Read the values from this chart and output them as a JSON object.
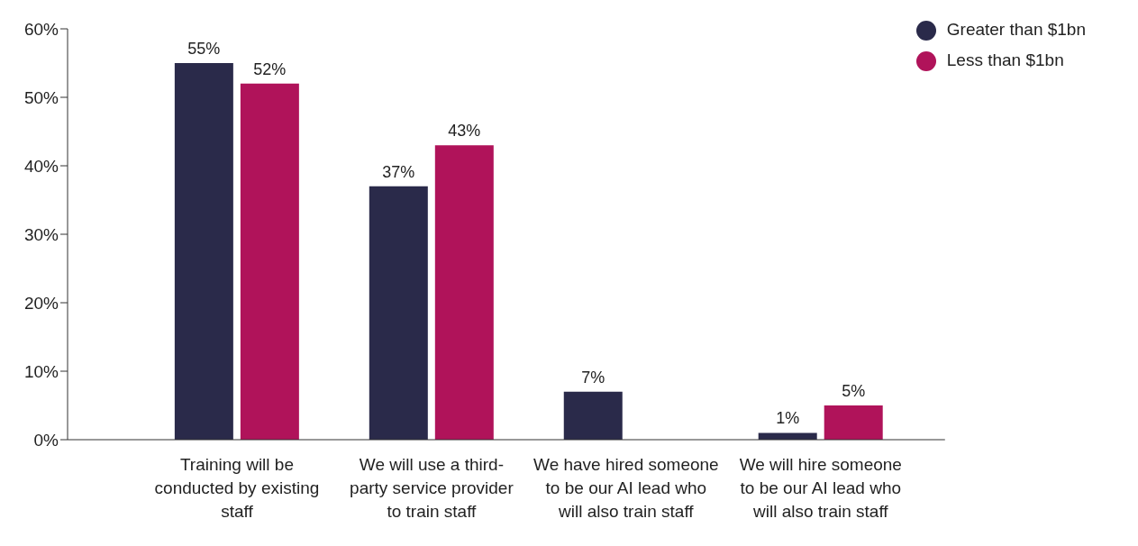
{
  "chart_data": {
    "type": "bar",
    "categories": [
      "Training will be conducted by existing staff",
      "We will use a third-party service provider to train staff",
      "We have hired someone to be our AI lead who will also train staff",
      "We will hire someone to be our AI lead who will also train staff"
    ],
    "series": [
      {
        "name": "Greater than $1bn",
        "color": "#2a2a4a",
        "values": [
          55,
          37,
          7,
          1
        ],
        "value_labels": [
          "55%",
          "37%",
          "7%",
          "1%"
        ]
      },
      {
        "name": "Less than $1bn",
        "color": "#b0135a",
        "values": [
          52,
          43,
          null,
          5
        ],
        "value_labels": [
          "52%",
          "43%",
          null,
          "5%"
        ]
      }
    ],
    "ylim": [
      0,
      60
    ],
    "yticks": [
      {
        "value": 0,
        "label": "0%"
      },
      {
        "value": 10,
        "label": "10%"
      },
      {
        "value": 20,
        "label": "20%"
      },
      {
        "value": 30,
        "label": "30%"
      },
      {
        "value": 40,
        "label": "40%"
      },
      {
        "value": 50,
        "label": "50%"
      },
      {
        "value": 60,
        "label": "60%"
      }
    ],
    "grid": false,
    "legend": "top right"
  }
}
